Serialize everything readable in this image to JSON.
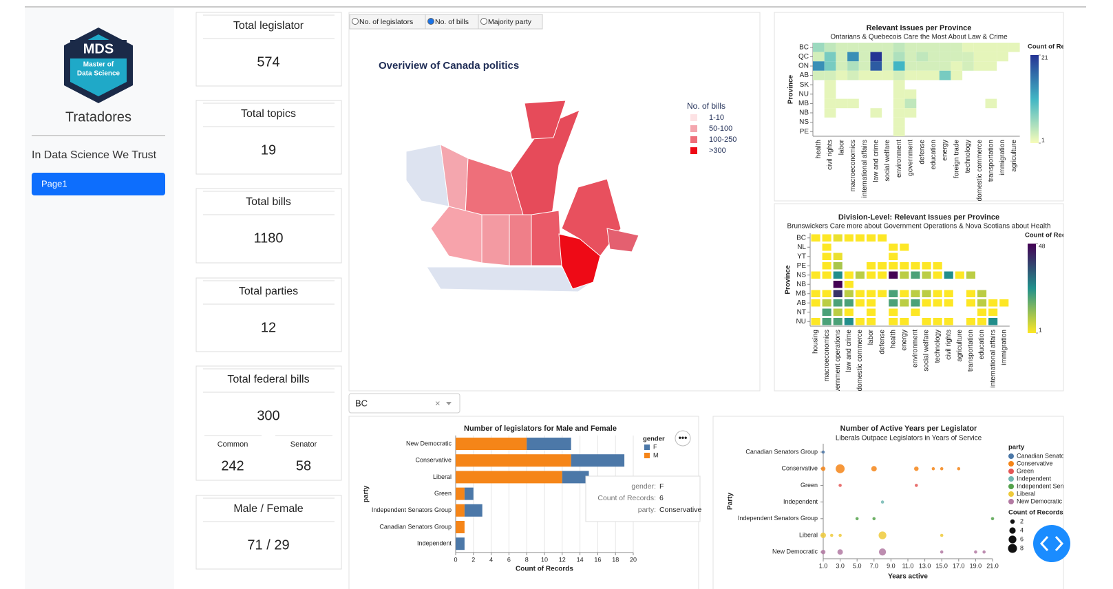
{
  "sidebar": {
    "logo_title": "MDS",
    "logo_lines": [
      "Master of",
      "Data Science"
    ],
    "team": "Tratadores",
    "motto": "In Data Science We Trust",
    "nav": [
      "Page1"
    ]
  },
  "cards": [
    {
      "title": "Total legislator",
      "value": 574
    },
    {
      "title": "Total topics",
      "value": 19
    },
    {
      "title": "Total bills",
      "value": 1180
    },
    {
      "title": "Total parties",
      "value": 12
    },
    {
      "title": "Total federal bills",
      "value": 300,
      "sub": [
        {
          "label": "Common",
          "value": 242
        },
        {
          "label": "Senator",
          "value": 58
        }
      ]
    },
    {
      "title": "Male / Female",
      "value": "71 / 29"
    }
  ],
  "map_panel": {
    "options": [
      "No. of legislators",
      "No. of bills",
      "Majority party"
    ],
    "selected": 1,
    "title": "Overiview of Canada politics",
    "legend_title": "No. of bills",
    "legend": [
      {
        "label": "1-10",
        "color": "#fde2e4"
      },
      {
        "label": "50-100",
        "color": "#f4a6ae"
      },
      {
        "label": "100-250",
        "color": "#ee6f7a"
      },
      {
        "label": ">300",
        "color": "#ee0a16"
      }
    ]
  },
  "dropdown": {
    "value": "BC"
  },
  "tooltip": {
    "rows": [
      {
        "key": "gender:",
        "value": "F"
      },
      {
        "key": "Count of Records:",
        "value": 6
      },
      {
        "key": "party:",
        "value": "Conservative"
      }
    ]
  },
  "chart_data": [
    {
      "type": "heatmap",
      "title": "Relevant Issues per Province",
      "subtitle": "Ontarians & Quebecois Care the Most About Law & Crime",
      "y_label": "Province",
      "legend_title": "Count of Records",
      "color_scale": [
        "#f7fcb9",
        "#41b6c4",
        "#253494"
      ],
      "clim": [
        1,
        21
      ],
      "cticks": [
        1,
        21
      ],
      "x_categories": [
        "health",
        "civil rights",
        "labor",
        "macroeconomics",
        "international affairs",
        "law and crime",
        "social welfare",
        "environment",
        "government",
        "defense",
        "education",
        "energy",
        "foreign trade",
        "technology",
        "domestic commerce",
        "transportation",
        "immigration",
        "agriculture"
      ],
      "y_categories": [
        "BC",
        "QC",
        "ON",
        "AB",
        "SK",
        "NU",
        "MB",
        "NB",
        "NS",
        "PE"
      ],
      "values": [
        [
          6,
          4,
          3,
          3,
          3,
          3,
          3,
          4,
          3,
          3,
          3,
          3,
          3,
          2,
          2,
          2,
          2,
          2
        ],
        [
          3,
          8,
          3,
          14,
          3,
          21,
          3,
          5,
          3,
          4,
          3,
          3,
          3,
          3,
          2,
          2,
          2,
          null
        ],
        [
          14,
          8,
          3,
          5,
          3,
          18,
          3,
          11,
          3,
          3,
          3,
          3,
          2,
          3,
          2,
          2,
          null,
          null
        ],
        [
          3,
          3,
          2,
          3,
          2,
          2,
          2,
          3,
          2,
          2,
          2,
          8,
          2,
          null,
          null,
          null,
          null,
          null
        ],
        [
          null,
          2,
          null,
          null,
          null,
          null,
          null,
          2,
          null,
          null,
          null,
          null,
          null,
          null,
          null,
          null,
          null,
          null
        ],
        [
          null,
          2,
          null,
          null,
          null,
          null,
          null,
          2,
          2,
          null,
          null,
          null,
          null,
          null,
          null,
          null,
          null,
          null
        ],
        [
          null,
          2,
          2,
          2,
          null,
          null,
          null,
          2,
          4,
          null,
          null,
          null,
          null,
          null,
          null,
          2,
          null,
          null
        ],
        [
          null,
          2,
          null,
          null,
          null,
          2,
          null,
          2,
          2,
          null,
          null,
          null,
          null,
          null,
          null,
          null,
          null,
          null
        ],
        [
          null,
          null,
          null,
          null,
          null,
          null,
          null,
          2,
          null,
          null,
          null,
          null,
          null,
          null,
          null,
          null,
          null,
          null
        ],
        [
          null,
          null,
          null,
          null,
          null,
          null,
          null,
          2,
          null,
          null,
          null,
          null,
          null,
          null,
          null,
          null,
          null,
          null
        ]
      ]
    },
    {
      "type": "heatmap",
      "title": "Division-Level: Relevant Issues per Province",
      "subtitle": "Brunswickers Care more about Government Operations & Nova Scotians about Health",
      "y_label": "Province",
      "legend_title": "Count of Records",
      "color_scale": [
        "#fde725",
        "#21918c",
        "#440154"
      ],
      "clim": [
        1,
        48
      ],
      "cticks": [
        1,
        48
      ],
      "x_categories": [
        "housing",
        "macroeconomics",
        "government operations",
        "law and crime",
        "domestic commerce",
        "labor",
        "defense",
        "health",
        "energy",
        "environment",
        "social welfare",
        "technology",
        "civil rights",
        "agriculture",
        "transportation",
        "education",
        "international affairs",
        "immigration"
      ],
      "y_categories": [
        "BC",
        "NL",
        "YT",
        "PE",
        "NS",
        "NB",
        "MB",
        "AB",
        "NT",
        "NU"
      ],
      "values": [
        [
          1,
          1,
          3,
          1,
          1,
          1,
          1,
          null,
          null,
          null,
          null,
          null,
          null,
          null,
          null,
          null,
          null,
          null
        ],
        [
          null,
          1,
          null,
          null,
          null,
          null,
          null,
          1,
          1,
          null,
          null,
          null,
          null,
          null,
          null,
          null,
          null,
          null
        ],
        [
          null,
          1,
          3,
          null,
          null,
          null,
          null,
          1,
          null,
          null,
          null,
          null,
          null,
          null,
          null,
          null,
          null,
          null
        ],
        [
          null,
          1,
          10,
          null,
          null,
          1,
          1,
          1,
          1,
          1,
          1,
          1,
          null,
          null,
          null,
          null,
          null,
          null
        ],
        [
          1,
          1,
          25,
          1,
          8,
          1,
          1,
          48,
          8,
          20,
          8,
          1,
          25,
          1,
          8,
          null,
          null,
          null
        ],
        [
          null,
          null,
          48,
          1,
          null,
          null,
          null,
          null,
          null,
          null,
          null,
          null,
          null,
          null,
          null,
          null,
          null,
          null
        ],
        [
          1,
          1,
          40,
          8,
          1,
          1,
          1,
          20,
          1,
          8,
          8,
          1,
          1,
          null,
          1,
          8,
          null,
          null
        ],
        [
          1,
          8,
          20,
          20,
          1,
          1,
          null,
          20,
          8,
          20,
          1,
          1,
          1,
          null,
          1,
          8,
          1,
          1
        ],
        [
          null,
          20,
          8,
          1,
          null,
          1,
          null,
          1,
          null,
          1,
          null,
          null,
          null,
          null,
          null,
          1,
          1,
          null
        ],
        [
          1,
          20,
          20,
          25,
          1,
          1,
          null,
          1,
          1,
          null,
          1,
          1,
          1,
          null,
          1,
          1,
          25,
          null
        ]
      ]
    },
    {
      "type": "bar",
      "orientation": "horizontal",
      "stacked": true,
      "title": "Number of legislators for Male and Female",
      "x_label": "Count of Records",
      "y_label": "party",
      "legend_title": "gender",
      "categories": [
        "New Democratic",
        "Conservative",
        "Liberal",
        "Green",
        "Independent Senators Group",
        "Canadian Senators Group",
        "Independent"
      ],
      "series": [
        {
          "name": "F",
          "color": "#4c78a8",
          "values": [
            5,
            6,
            3,
            1,
            2,
            0,
            1
          ]
        },
        {
          "name": "M",
          "color": "#f58518",
          "values": [
            8,
            13,
            12,
            1,
            1,
            1,
            0
          ]
        }
      ],
      "xlim": [
        0,
        20
      ],
      "xticks": [
        0,
        2,
        4,
        6,
        8,
        10,
        12,
        14,
        16,
        18,
        20
      ],
      "grid": true
    },
    {
      "type": "scatter",
      "title": "Number of Active Years per Legislator",
      "subtitle": "Liberals Outpace Legislators in Years of Service",
      "x_label": "Years active",
      "y_label": "Party",
      "legend_title": "party",
      "size_legend_title": "Count of Records",
      "size_legend": [
        2,
        4,
        6,
        8
      ],
      "xlim": [
        1,
        21
      ],
      "xticks": [
        {
          "value": 1,
          "label": "1.0"
        },
        {
          "value": 3,
          "label": "3.0"
        },
        {
          "value": 5,
          "label": "5.0"
        },
        {
          "value": 7,
          "label": "7.0"
        },
        {
          "value": 9,
          "label": "9.0"
        },
        {
          "value": 11,
          "label": "11.0"
        },
        {
          "value": 13,
          "label": "13.0"
        },
        {
          "value": 15,
          "label": "15.0"
        },
        {
          "value": 17,
          "label": "17.0"
        },
        {
          "value": 19,
          "label": "19.0"
        },
        {
          "value": 21,
          "label": "21.0"
        }
      ],
      "series": [
        {
          "name": "Canadian Senators Group",
          "color": "#4c78a8",
          "x": [
            1
          ],
          "sizes": [
            1
          ]
        },
        {
          "name": "Conservative",
          "color": "#f58518",
          "x": [
            1,
            3,
            7,
            12,
            14,
            15,
            17
          ],
          "sizes": [
            2,
            8,
            3,
            2,
            1,
            1,
            1
          ]
        },
        {
          "name": "Green",
          "color": "#e45756",
          "x": [
            3,
            12
          ],
          "sizes": [
            1,
            1
          ]
        },
        {
          "name": "Independent",
          "color": "#72b7b2",
          "x": [
            8
          ],
          "sizes": [
            1
          ]
        },
        {
          "name": "Independent Senators Group",
          "color": "#54a24b",
          "x": [
            5,
            7,
            21
          ],
          "sizes": [
            1,
            1,
            1
          ]
        },
        {
          "name": "Liberal",
          "color": "#eeca3b",
          "x": [
            1,
            2,
            3,
            8,
            15
          ],
          "sizes": [
            3,
            1,
            1,
            6,
            1
          ]
        },
        {
          "name": "New Democratic",
          "color": "#b279a2",
          "x": [
            1,
            3,
            8,
            15,
            19,
            20
          ],
          "sizes": [
            2,
            3,
            5,
            1,
            1,
            1
          ]
        }
      ]
    }
  ]
}
